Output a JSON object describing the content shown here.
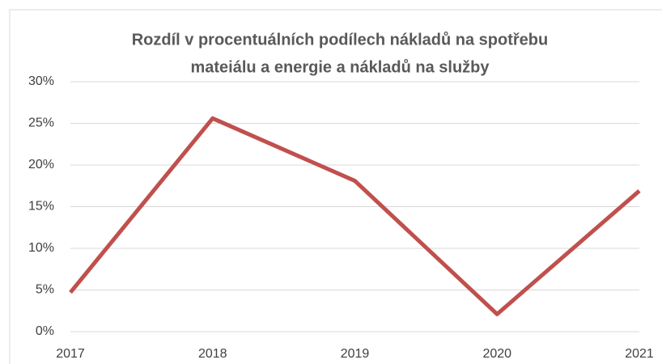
{
  "chart_data": {
    "type": "line",
    "title": [
      "Rozdíl v procentuálních podílech nákladů na spotřebu",
      "mateiálu a energie a nákladů na služby"
    ],
    "categories": [
      "2017",
      "2018",
      "2019",
      "2020",
      "2021"
    ],
    "series": [
      {
        "name": "Rozdíl",
        "color": "#c0504d",
        "values": [
          4.7,
          25.6,
          18.1,
          2.1,
          16.9
        ]
      }
    ],
    "ylim": [
      0,
      30
    ],
    "yticks": [
      {
        "value": 0,
        "label": "0%"
      },
      {
        "value": 5,
        "label": "5%"
      },
      {
        "value": 10,
        "label": "10%"
      },
      {
        "value": 15,
        "label": "15%"
      },
      {
        "value": 20,
        "label": "20%"
      },
      {
        "value": 25,
        "label": "25%"
      },
      {
        "value": 30,
        "label": "30%"
      }
    ],
    "grid": true
  }
}
